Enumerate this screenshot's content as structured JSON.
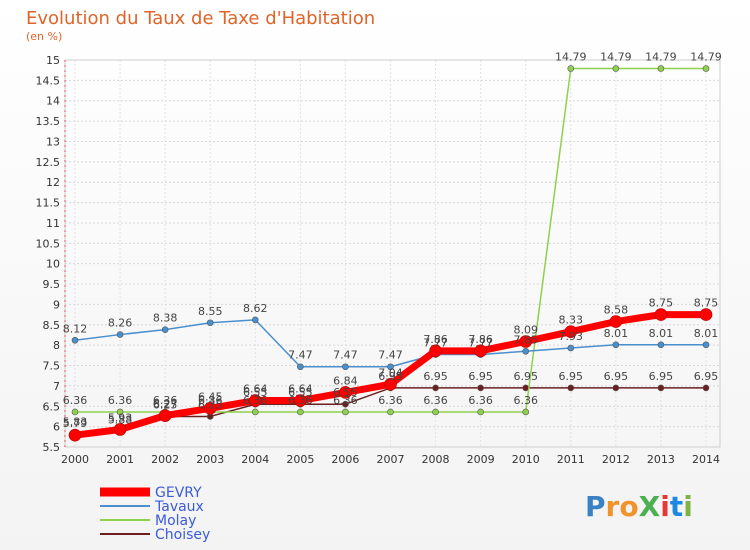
{
  "chart_data": {
    "type": "line",
    "title": "Evolution du Taux de Taxe d'Habitation",
    "subtitle": "(en %)",
    "x": [
      "2000",
      "2001",
      "2002",
      "2003",
      "2004",
      "2005",
      "2006",
      "2007",
      "2008",
      "2009",
      "2010",
      "2011",
      "2012",
      "2013",
      "2014"
    ],
    "yticks": [
      "5.5",
      "6",
      "6.5",
      "7",
      "7.5",
      "8",
      "8.5",
      "9",
      "9.5",
      "10",
      "10.5",
      "11",
      "11.5",
      "12",
      "12.5",
      "13",
      "13.5",
      "14",
      "14.5",
      "15"
    ],
    "ylim": [
      5.5,
      15
    ],
    "grid": true,
    "legend_position": "bottom-left",
    "series": [
      {
        "name": "GEVRY",
        "color": "#ff0000",
        "values": [
          5.79,
          5.93,
          6.27,
          6.45,
          6.64,
          6.64,
          6.84,
          7.04,
          7.86,
          7.86,
          8.09,
          8.33,
          8.58,
          8.75,
          8.75
        ],
        "labels": [
          "5.79",
          "5.93",
          "6.27",
          "6.45",
          "6.64",
          "6.64",
          "6.84",
          "7.04",
          "7.86",
          "7.86",
          "8.09",
          "8.33",
          "8.58",
          "8.75",
          "8.75"
        ]
      },
      {
        "name": "Tavaux",
        "color": "#4a8fce",
        "values": [
          8.12,
          8.26,
          8.38,
          8.55,
          8.62,
          7.47,
          7.47,
          7.47,
          7.77,
          7.77,
          7.85,
          7.93,
          8.01,
          8.01,
          8.01
        ],
        "labels": [
          "8.12",
          "8.26",
          "8.38",
          "8.55",
          "8.62",
          "7.47",
          "7.47",
          "7.47",
          "7.77",
          "7.77",
          "7.85",
          "7.93",
          "8.01",
          "8.01",
          "8.01"
        ]
      },
      {
        "name": "Molay",
        "color": "#8ed14d",
        "values": [
          6.36,
          6.36,
          6.36,
          6.36,
          6.36,
          6.36,
          6.36,
          6.36,
          6.36,
          6.36,
          6.36,
          14.79,
          14.79,
          14.79,
          14.79
        ],
        "labels": [
          "6.36",
          "6.36",
          "6.36",
          "6.36",
          "6.36",
          "6.36",
          "6.36",
          "6.36",
          "6.36",
          "6.36",
          "6.36",
          "14.79",
          "14.79",
          "14.79",
          "14.79"
        ]
      },
      {
        "name": "Choisey",
        "color": "#6b1f1f",
        "values": [
          5.83,
          5.88,
          6.25,
          6.25,
          6.55,
          6.55,
          6.55,
          6.95,
          6.95,
          6.95,
          6.95,
          6.95,
          6.95,
          6.95,
          6.95
        ],
        "labels": [
          "5.83",
          "5.88",
          "6.25",
          "6.25",
          "6.55",
          "6.55",
          "6.55",
          "6.95",
          "6.95",
          "6.95",
          "6.95",
          "6.95",
          "6.95",
          "6.95",
          "6.95"
        ]
      }
    ]
  },
  "logo": {
    "text": "ProXiti",
    "letters": [
      "P",
      "r",
      "o",
      "X",
      "i",
      "t",
      "i"
    ],
    "colors": [
      "#3b82c4",
      "#f0932b",
      "#f0932b",
      "#4caf50",
      "#e53935",
      "#1e88e5",
      "#7cb342"
    ]
  }
}
